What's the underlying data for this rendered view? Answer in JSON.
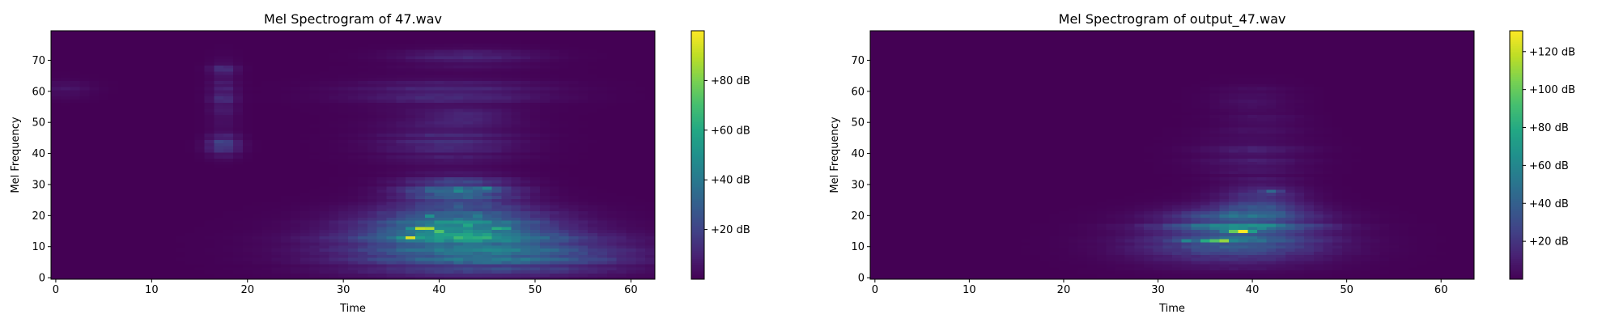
{
  "chart_data": [
    {
      "type": "heatmap",
      "title": "Mel Spectrogram of 47.wav",
      "xlabel": "Time",
      "ylabel": "Mel Frequency",
      "xlim": [
        -0.5,
        62.5
      ],
      "ylim": [
        -0.5,
        79.5
      ],
      "xticks": [
        0,
        10,
        20,
        30,
        40,
        50,
        60
      ],
      "yticks": [
        0,
        10,
        20,
        30,
        40,
        50,
        60,
        70
      ],
      "colormap": "viridis",
      "colorbar": {
        "range_db": [
          0,
          100
        ],
        "ticks": [
          20,
          40,
          60,
          80
        ],
        "tick_labels": [
          "+20 dB",
          "+40 dB",
          "+60 dB",
          "+80 dB"
        ]
      },
      "n_time": 63,
      "n_mel": 80,
      "blobs": [
        {
          "t": 42,
          "m": 10,
          "st": 9.0,
          "sm": 6.0,
          "db": 28
        },
        {
          "t": 42,
          "m": 17,
          "st": 6.0,
          "sm": 4.0,
          "db": 38
        },
        {
          "t": 42,
          "m": 28,
          "st": 4.0,
          "sm": 3.0,
          "db": 30
        },
        {
          "t": 41,
          "m": 45,
          "st": 5.0,
          "sm": 6.0,
          "db": 12
        },
        {
          "t": 41,
          "m": 60,
          "st": 7.0,
          "sm": 3.0,
          "db": 12
        },
        {
          "t": 43,
          "m": 71,
          "st": 5.0,
          "sm": 2.0,
          "db": 10
        },
        {
          "t": 43,
          "m": 52,
          "st": 3.0,
          "sm": 1.5,
          "db": 10
        },
        {
          "t": 17.5,
          "m": 43,
          "st": 1.2,
          "sm": 2.5,
          "db": 18
        },
        {
          "t": 17.5,
          "m": 58,
          "st": 1.0,
          "sm": 6.0,
          "db": 12
        },
        {
          "t": 17.5,
          "m": 67,
          "st": 1.0,
          "sm": 1.5,
          "db": 10
        },
        {
          "t": 50,
          "m": 7,
          "st": 8.0,
          "sm": 4.0,
          "db": 14
        },
        {
          "t": 1,
          "m": 61,
          "st": 2.0,
          "sm": 2.0,
          "db": 6
        }
      ],
      "peaks": [
        {
          "t": 37,
          "m": 13,
          "db": 95
        },
        {
          "t": 38,
          "m": 16,
          "db": 90
        },
        {
          "t": 39,
          "m": 16,
          "db": 88
        },
        {
          "t": 40,
          "m": 15,
          "db": 72
        },
        {
          "t": 43,
          "m": 17,
          "db": 60
        },
        {
          "t": 46,
          "m": 16,
          "db": 62
        },
        {
          "t": 47,
          "m": 16,
          "db": 56
        },
        {
          "t": 42,
          "m": 28,
          "db": 48
        },
        {
          "t": 45,
          "m": 29,
          "db": 46
        },
        {
          "t": 39,
          "m": 20,
          "db": 50
        },
        {
          "t": 44,
          "m": 20,
          "db": 42
        }
      ]
    },
    {
      "type": "heatmap",
      "title": "Mel Spectrogram of output_47.wav",
      "xlabel": "Time",
      "ylabel": "Mel Frequency",
      "xlim": [
        -0.5,
        63.5
      ],
      "ylim": [
        -0.5,
        79.5
      ],
      "xticks": [
        0,
        10,
        20,
        30,
        40,
        50,
        60
      ],
      "yticks": [
        0,
        10,
        20,
        30,
        40,
        50,
        60,
        70
      ],
      "colormap": "viridis",
      "colorbar": {
        "range_db": [
          0,
          131
        ],
        "ticks": [
          20,
          40,
          60,
          80,
          100,
          120
        ],
        "tick_labels": [
          "+20 dB",
          "+40 dB",
          "+60 dB",
          "+80 dB",
          "+100 dB",
          "+120 dB"
        ]
      },
      "n_time": 64,
      "n_mel": 80,
      "blobs": [
        {
          "t": 38,
          "m": 12,
          "st": 7.0,
          "sm": 5.0,
          "db": 30
        },
        {
          "t": 39,
          "m": 17,
          "st": 5.0,
          "sm": 4.0,
          "db": 38
        },
        {
          "t": 41,
          "m": 25,
          "st": 3.0,
          "sm": 4.0,
          "db": 24
        },
        {
          "t": 40,
          "m": 40,
          "st": 4.0,
          "sm": 5.0,
          "db": 10
        },
        {
          "t": 40,
          "m": 58,
          "st": 3.0,
          "sm": 3.0,
          "db": 6
        },
        {
          "t": 41,
          "m": 50,
          "st": 3.0,
          "sm": 2.0,
          "db": 6
        }
      ],
      "peaks": [
        {
          "t": 35,
          "m": 12,
          "db": 80
        },
        {
          "t": 36,
          "m": 12,
          "db": 95
        },
        {
          "t": 37,
          "m": 12,
          "db": 110
        },
        {
          "t": 38,
          "m": 15,
          "db": 100
        },
        {
          "t": 39,
          "m": 15,
          "db": 131
        },
        {
          "t": 40,
          "m": 15,
          "db": 70
        },
        {
          "t": 41,
          "m": 16,
          "db": 60
        },
        {
          "t": 42,
          "m": 28,
          "db": 45
        },
        {
          "t": 33,
          "m": 12,
          "db": 60
        }
      ]
    }
  ]
}
